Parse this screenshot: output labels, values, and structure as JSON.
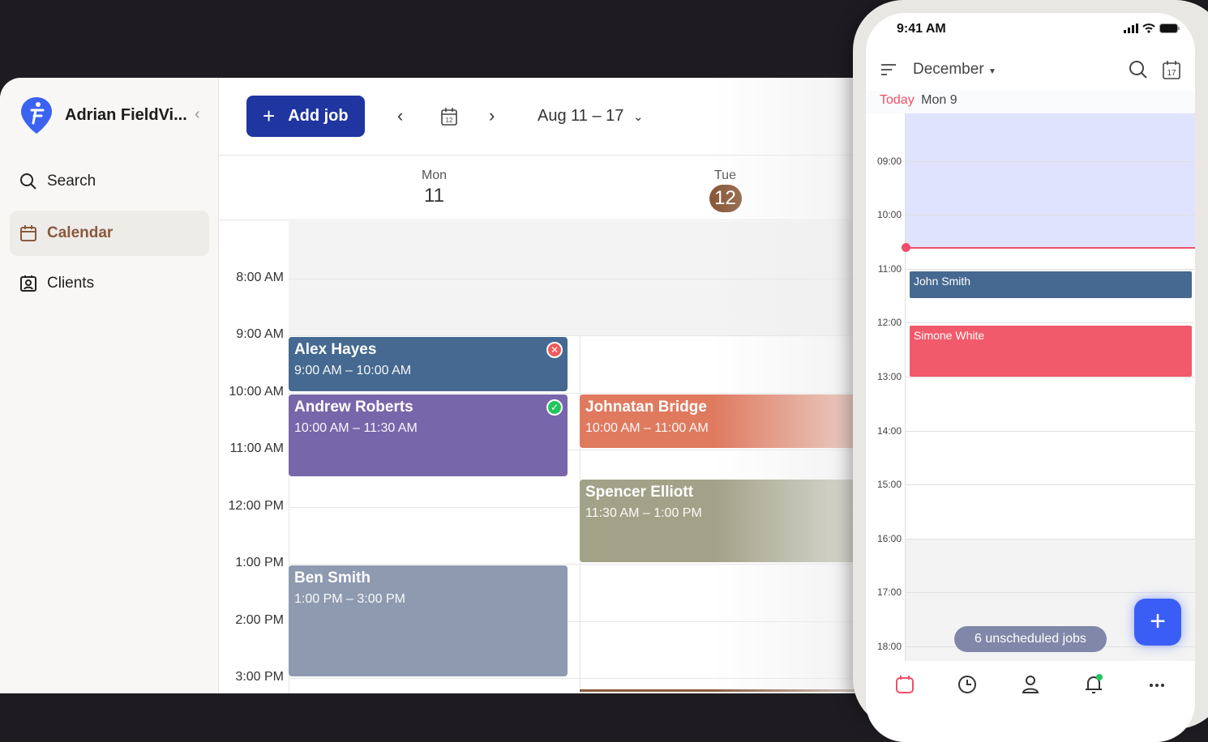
{
  "sidebar": {
    "account": "Adrian FieldVi...",
    "items": [
      {
        "label": "Search",
        "icon": "search-icon"
      },
      {
        "label": "Calendar",
        "icon": "calendar-icon",
        "active": true
      },
      {
        "label": "Clients",
        "icon": "contact-icon"
      }
    ]
  },
  "toolbar": {
    "add_job": "Add job",
    "range": "Aug 11 – 17",
    "calendar_day": "12"
  },
  "days": [
    {
      "name": "Mon",
      "num": "11"
    },
    {
      "name": "Tue",
      "num": "12",
      "today": true
    }
  ],
  "hours": [
    "8:00 AM",
    "9:00 AM",
    "10:00 AM",
    "11:00 AM",
    "12:00 PM",
    "1:00 PM",
    "2:00 PM",
    "3:00 PM"
  ],
  "events": [
    {
      "title": "Alex Hayes",
      "time": "9:00 AM – 10:00 AM",
      "day": 0,
      "start": 9,
      "end": 10,
      "color": "#456990",
      "status": "cancelled"
    },
    {
      "title": "Andrew Roberts",
      "time": "10:00 AM – 11:30 AM",
      "day": 0,
      "start": 10,
      "end": 11.5,
      "color": "#7866aa",
      "status": "completed"
    },
    {
      "title": "Ben Smith",
      "time": "1:00 PM – 3:00 PM",
      "day": 0,
      "start": 13,
      "end": 15,
      "color": "#8e9ab0"
    },
    {
      "title": "Johnatan Bridge",
      "time": "10:00 AM – 11:00 AM",
      "day": 1,
      "start": 10,
      "end": 11,
      "color": "#df7a5f"
    },
    {
      "title": "Spencer Elliott",
      "time": "11:30 AM – 1:00 PM",
      "day": 1,
      "start": 11.5,
      "end": 13,
      "color": "#a2a288"
    }
  ],
  "now_hour": 15.2,
  "colors": {
    "accent": "#1f35a0",
    "brand_brown": "#8a5a3b",
    "cancel": "#f05a5a",
    "complete": "#22c55e"
  },
  "phone": {
    "time": "9:41 AM",
    "month": "December",
    "today_label": "Today",
    "today_date": "Mon 9",
    "calendar_icon_day": "17",
    "hours": [
      "09:00",
      "10:00",
      "11:00",
      "12:00",
      "13:00",
      "14:00",
      "15:00",
      "16:00",
      "17:00",
      "18:00"
    ],
    "events": [
      {
        "title": "John Smith",
        "start": 11.05,
        "end": 11.55,
        "color": "#456990"
      },
      {
        "title": "Simone White",
        "start": 12.05,
        "end": 13,
        "color": "#f05a6a"
      }
    ],
    "now_hour": 10.6,
    "unscheduled": "6 unscheduled jobs",
    "nav": [
      "calendar-icon",
      "clock-icon",
      "person-icon",
      "bell-icon",
      "more-icon"
    ]
  }
}
